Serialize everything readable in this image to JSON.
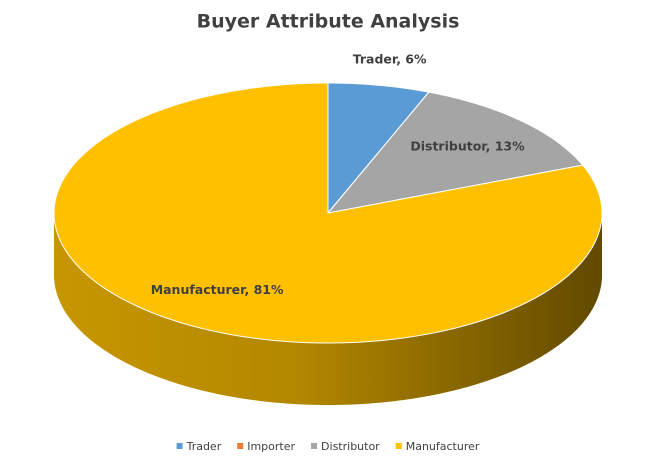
{
  "chart_data": {
    "type": "pie3d",
    "title": "Buyer Attribute Analysis",
    "categories": [
      "Trader",
      "Importer",
      "Distributor",
      "Manufacturer"
    ],
    "values": [
      6,
      0,
      13,
      81
    ],
    "value_labels": [
      "Trader, 6%",
      null,
      "Distributor, 13%",
      "Manufacturer, 81%"
    ],
    "colors": [
      "#5b9bd5",
      "#ed7d31",
      "#a5a5a5",
      "#ffc000"
    ],
    "legend": "bottom"
  }
}
